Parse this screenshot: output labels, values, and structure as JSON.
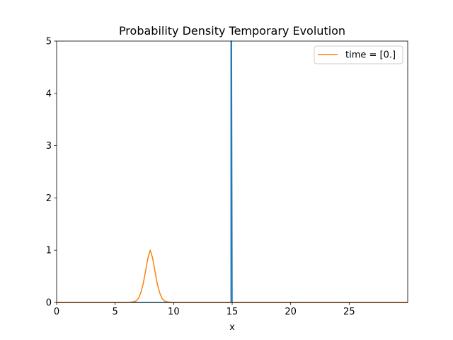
{
  "chart_data": {
    "type": "line",
    "title": "Probability Density Temporary Evolution",
    "xlabel": "x",
    "ylabel": "",
    "xlim": [
      0,
      30
    ],
    "ylim": [
      0,
      5
    ],
    "xticks": [
      0,
      5,
      10,
      15,
      20,
      25
    ],
    "yticks": [
      0,
      1,
      2,
      3,
      4,
      5
    ],
    "grid": false,
    "legend_position": "top-right",
    "series": [
      {
        "color": "#1f77b4",
        "x": [
          0,
          14.9,
          14.9,
          14.95,
          15.0,
          30
        ],
        "y": [
          0,
          0,
          5,
          5,
          0,
          0
        ]
      },
      {
        "name": "time = [0.]",
        "color": "#ff7f0e",
        "x": [
          0,
          6.0,
          6.5,
          6.8,
          7.0,
          7.2,
          7.4,
          7.6,
          7.8,
          8.0,
          8.2,
          8.4,
          8.6,
          8.8,
          9.0,
          9.2,
          9.5,
          10.0,
          30
        ],
        "y": [
          0,
          0.0,
          0.01,
          0.03,
          0.08,
          0.19,
          0.36,
          0.6,
          0.85,
          1.0,
          0.85,
          0.6,
          0.36,
          0.19,
          0.08,
          0.03,
          0.01,
          0.0,
          0
        ]
      }
    ]
  }
}
